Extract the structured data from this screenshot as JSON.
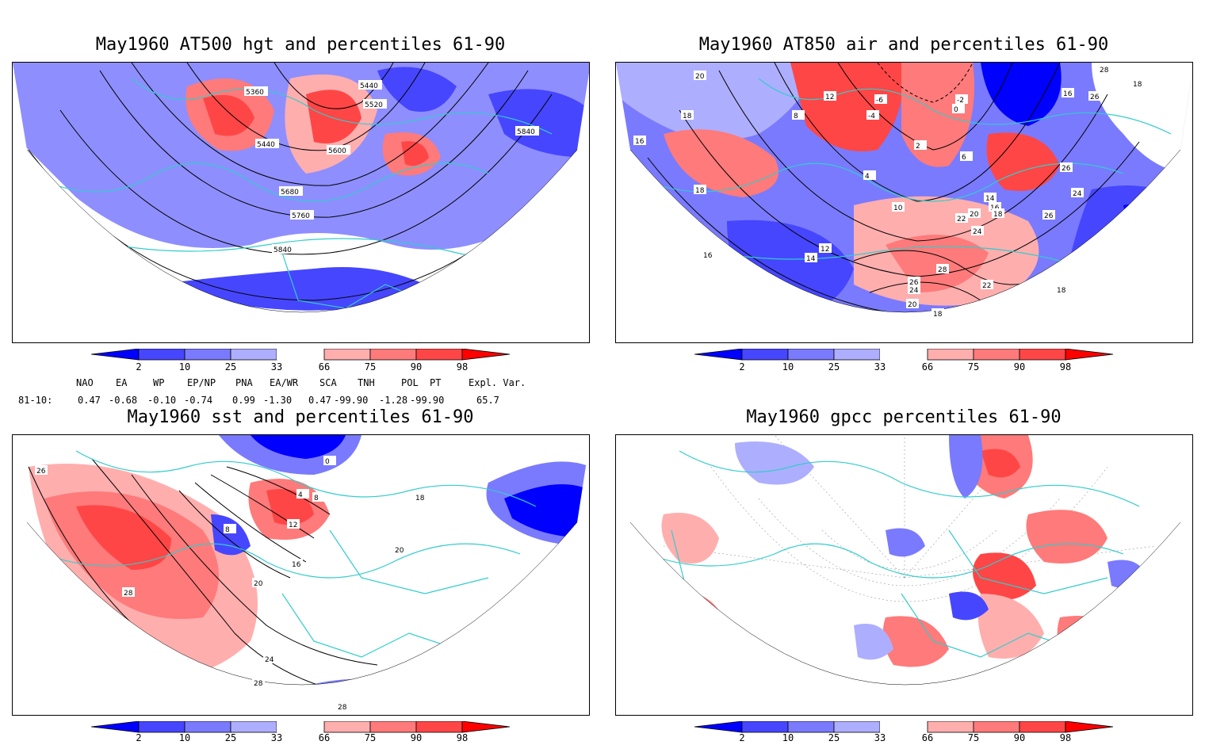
{
  "colors": {
    "ocean": "#ffffff",
    "coast": "#33cccc",
    "contour": "#000000",
    "below": [
      "#0000ff",
      "#4646ff",
      "#7a7aff",
      "#aeaeff"
    ],
    "above": [
      "#ffaeae",
      "#ff7a7a",
      "#ff4646",
      "#ff0000"
    ]
  },
  "panels": [
    {
      "title": "May1960 AT500 hgt and percentiles 61-90",
      "contour_labels": [
        "5360",
        "5440",
        "5520",
        "5440",
        "5600",
        "5680",
        "5760",
        "5840",
        "5840"
      ]
    },
    {
      "title": "May1960 AT850 air and percentiles 61-90",
      "contour_labels": [
        "20",
        "18",
        "16",
        "18",
        "16",
        "8",
        "4",
        "12",
        "14",
        "10",
        "2",
        "-2",
        "6",
        "14",
        "16",
        "18",
        "22",
        "20",
        "24",
        "26",
        "28",
        "26",
        "24",
        "22",
        "20",
        "18",
        "18",
        "16",
        "26",
        "24",
        "26",
        "18",
        "28",
        "12",
        "-4",
        "-6",
        "0"
      ]
    },
    {
      "title": "May1960 sst and percentiles 61-90",
      "contour_labels": [
        "26",
        "0",
        "4",
        "8",
        "12",
        "8",
        "16",
        "20",
        "18",
        "20",
        "24",
        "28",
        "28",
        "28"
      ]
    },
    {
      "title": "May1960 gpcc percentiles 61-90",
      "contour_labels": []
    }
  ],
  "colorbar": {
    "ticks": [
      "2",
      "10",
      "25",
      "33",
      "66",
      "75",
      "90",
      "98"
    ]
  },
  "indices": {
    "headers": [
      "NAO",
      "EA",
      "WP",
      "EP/NP",
      "PNA",
      "EA/WR",
      "SCA",
      "TNH",
      "POL",
      "PT",
      "Expl. Var."
    ],
    "row_label": "81-10:",
    "values": [
      "0.47",
      "-0.68",
      "-0.10",
      "-0.74",
      "0.99",
      "-1.30",
      "0.47",
      "-99.90",
      "-1.28",
      "-99.90",
      "65.7"
    ]
  }
}
